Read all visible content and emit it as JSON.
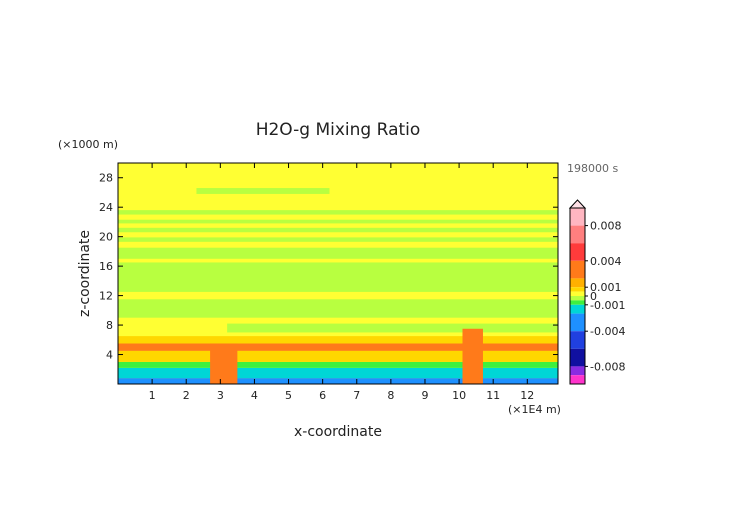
{
  "chart_data": {
    "type": "heatmap",
    "title": "H2O-g Mixing Ratio",
    "time_label": "198000 s",
    "xlabel": "x-coordinate",
    "ylabel": "z-coordinate",
    "x_unit": "(×1E4 m)",
    "y_unit": "(×1000 m)",
    "xlim": [
      0,
      12.9
    ],
    "ylim": [
      0,
      30
    ],
    "x_ticks": [
      1,
      2,
      3,
      4,
      5,
      6,
      7,
      8,
      9,
      10,
      11,
      12
    ],
    "y_ticks": [
      4,
      8,
      12,
      16,
      20,
      24,
      28
    ],
    "colorbar": {
      "tick_labels": [
        "0.008",
        "0.004",
        "0.001",
        "0",
        "-0.001",
        "-0.004",
        "-0.008"
      ],
      "tick_values": [
        0.008,
        0.004,
        0.001,
        0,
        -0.001,
        -0.004,
        -0.008
      ],
      "range": [
        -0.01,
        0.01
      ],
      "levels": [
        {
          "lo": 0.008,
          "hi": 0.01,
          "color": "#ffb6c1"
        },
        {
          "lo": 0.006,
          "hi": 0.008,
          "color": "#ff7f7f"
        },
        {
          "lo": 0.004,
          "hi": 0.006,
          "color": "#ff3b3b"
        },
        {
          "lo": 0.002,
          "hi": 0.004,
          "color": "#ff7a1a"
        },
        {
          "lo": 0.001,
          "hi": 0.002,
          "color": "#ffb000"
        },
        {
          "lo": 0.0005,
          "hi": 0.001,
          "color": "#ffd700"
        },
        {
          "lo": 0.0,
          "hi": 0.0005,
          "color": "#ffff33"
        },
        {
          "lo": -0.0005,
          "hi": 0.0,
          "color": "#b8ff40"
        },
        {
          "lo": -0.001,
          "hi": -0.0005,
          "color": "#3ef03e"
        },
        {
          "lo": -0.002,
          "hi": -0.001,
          "color": "#00d6d6"
        },
        {
          "lo": -0.004,
          "hi": -0.002,
          "color": "#1e90ff"
        },
        {
          "lo": -0.006,
          "hi": -0.004,
          "color": "#2040e0"
        },
        {
          "lo": -0.008,
          "hi": -0.006,
          "color": "#1010a0"
        },
        {
          "lo": -0.009,
          "hi": -0.008,
          "color": "#8a2be2"
        },
        {
          "lo": -0.01,
          "hi": -0.009,
          "color": "#ff33cc"
        }
      ]
    },
    "background_color": "#ffff33",
    "field_bands": [
      {
        "z": [
          0,
          0.8
        ],
        "x": [
          0,
          12.9
        ],
        "color": "#1e90ff"
      },
      {
        "z": [
          0.8,
          2.2
        ],
        "x": [
          0,
          12.9
        ],
        "color": "#00d6d6"
      },
      {
        "z": [
          2.2,
          3.0
        ],
        "x": [
          0,
          12.9
        ],
        "color": "#3ef03e"
      },
      {
        "z": [
          3.0,
          4.5
        ],
        "x": [
          0,
          12.9
        ],
        "color": "#ffd700"
      },
      {
        "z": [
          4.5,
          5.5
        ],
        "x": [
          0,
          12.9
        ],
        "color": "#ff7a1a"
      },
      {
        "z": [
          5.5,
          6.5
        ],
        "x": [
          0,
          12.9
        ],
        "color": "#ffd700"
      },
      {
        "z": [
          7.0,
          8.2
        ],
        "x": [
          3.2,
          12.9
        ],
        "color": "#b8ff40"
      },
      {
        "z": [
          9.0,
          11.5
        ],
        "x": [
          0,
          12.9
        ],
        "color": "#b8ff40"
      },
      {
        "z": [
          12.5,
          16.5
        ],
        "x": [
          0,
          12.9
        ],
        "color": "#b8ff40"
      },
      {
        "z": [
          17.0,
          18.5
        ],
        "x": [
          0,
          12.9
        ],
        "color": "#b8ff40"
      },
      {
        "z": [
          19.3,
          19.9
        ],
        "x": [
          0,
          12.9
        ],
        "color": "#b8ff40"
      },
      {
        "z": [
          20.6,
          21.2
        ],
        "x": [
          0,
          12.9
        ],
        "color": "#b8ff40"
      },
      {
        "z": [
          21.8,
          22.3
        ],
        "x": [
          0,
          12.9
        ],
        "color": "#b8ff40"
      },
      {
        "z": [
          23.0,
          23.6
        ],
        "x": [
          0,
          12.9
        ],
        "color": "#b8ff40"
      },
      {
        "z": [
          25.8,
          26.6
        ],
        "x": [
          2.3,
          6.2
        ],
        "color": "#b8ff40"
      }
    ],
    "plumes": [
      {
        "x": [
          2.7,
          3.5
        ],
        "z": [
          0,
          5.5
        ],
        "color": "#ff7a1a"
      },
      {
        "x": [
          10.1,
          10.7
        ],
        "z": [
          0,
          7.5
        ],
        "color": "#ff7a1a"
      }
    ]
  }
}
